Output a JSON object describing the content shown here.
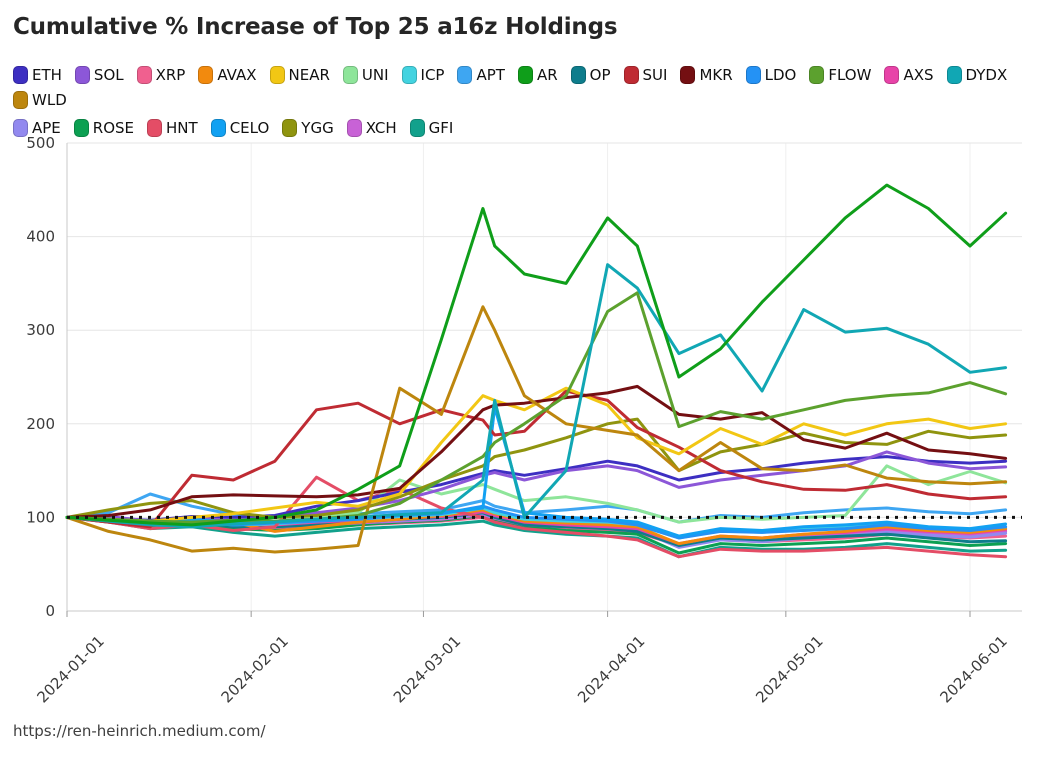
{
  "title": "Cumulative % Increase of Top 25 a16z Holdings",
  "footer": "https://ren-heinrich.medium.com/",
  "chart_data": {
    "type": "line",
    "title": "Cumulative % Increase of Top 25 a16z Holdings",
    "xlabel": "",
    "ylabel": "",
    "ylim": [
      0,
      500
    ],
    "yticks": [
      0,
      100,
      200,
      300,
      400,
      500
    ],
    "grid": true,
    "legend_position": "top",
    "baseline": {
      "value": 100,
      "style": "dotted",
      "color": "#111111"
    },
    "x_tick_labels": [
      "2024-01-01",
      "2024-02-01",
      "2024-03-01",
      "2024-04-01",
      "2024-05-01",
      "2024-06-01"
    ],
    "x_tick_days": [
      0,
      31,
      60,
      91,
      121,
      152
    ],
    "sample_days": [
      0,
      7,
      14,
      21,
      28,
      35,
      42,
      49,
      56,
      63,
      70,
      72,
      77,
      84,
      91,
      96,
      103,
      110,
      117,
      124,
      131,
      138,
      145,
      152,
      158
    ],
    "series": [
      {
        "name": "ETH",
        "color": "#3d2fc2",
        "values": [
          100,
          99,
          97,
          101,
          100,
          102,
          112,
          118,
          127,
          135,
          147,
          150,
          145,
          152,
          160,
          155,
          140,
          148,
          152,
          158,
          162,
          165,
          160,
          158,
          160
        ]
      },
      {
        "name": "SOL",
        "color": "#8c57d8",
        "values": [
          100,
          101,
          96,
          99,
          97,
          100,
          105,
          110,
          118,
          130,
          145,
          148,
          140,
          150,
          155,
          150,
          132,
          140,
          145,
          150,
          155,
          170,
          158,
          152,
          154
        ]
      },
      {
        "name": "XRP",
        "color": "#f0608f",
        "values": [
          100,
          96,
          92,
          94,
          90,
          88,
          90,
          92,
          94,
          96,
          100,
          96,
          90,
          88,
          86,
          84,
          70,
          76,
          74,
          76,
          78,
          82,
          80,
          78,
          80
        ]
      },
      {
        "name": "AVAX",
        "color": "#f28a0e",
        "values": [
          100,
          97,
          93,
          97,
          95,
          85,
          90,
          95,
          98,
          102,
          108,
          104,
          96,
          94,
          92,
          90,
          72,
          80,
          78,
          82,
          85,
          90,
          86,
          84,
          88
        ]
      },
      {
        "name": "NEAR",
        "color": "#f2c714",
        "values": [
          100,
          98,
          96,
          100,
          104,
          110,
          116,
          112,
          125,
          180,
          230,
          225,
          215,
          238,
          220,
          185,
          168,
          195,
          178,
          200,
          188,
          200,
          205,
          195,
          200
        ]
      },
      {
        "name": "UNI",
        "color": "#8ee59a",
        "values": [
          100,
          98,
          95,
          96,
          94,
          96,
          100,
          105,
          140,
          125,
          135,
          130,
          118,
          122,
          115,
          108,
          95,
          100,
          98,
          100,
          102,
          155,
          135,
          149,
          137
        ]
      },
      {
        "name": "ICP",
        "color": "#43d3e0",
        "values": [
          100,
          96,
          93,
          95,
          92,
          93,
          96,
          98,
          101,
          103,
          110,
          105,
          98,
          96,
          95,
          92,
          78,
          86,
          84,
          88,
          90,
          93,
          89,
          87,
          90
        ]
      },
      {
        "name": "APT",
        "color": "#3ea6f2",
        "values": [
          100,
          105,
          125,
          112,
          103,
          100,
          102,
          104,
          106,
          108,
          118,
          112,
          105,
          108,
          112,
          108,
          95,
          102,
          100,
          105,
          108,
          110,
          106,
          104,
          108
        ]
      },
      {
        "name": "AR",
        "color": "#0f9e1a",
        "values": [
          100,
          97,
          94,
          92,
          96,
          100,
          108,
          130,
          155,
          290,
          430,
          390,
          360,
          350,
          420,
          390,
          250,
          280,
          330,
          375,
          420,
          455,
          430,
          390,
          425
        ]
      },
      {
        "name": "OP",
        "color": "#0e7d8c",
        "values": [
          100,
          97,
          93,
          95,
          90,
          90,
          92,
          95,
          98,
          100,
          105,
          100,
          92,
          90,
          88,
          85,
          70,
          78,
          76,
          78,
          80,
          82,
          78,
          74,
          75
        ]
      },
      {
        "name": "SUI",
        "color": "#bf2b33",
        "values": [
          100,
          95,
          90,
          145,
          140,
          160,
          215,
          222,
          200,
          215,
          204,
          188,
          192,
          235,
          225,
          196,
          175,
          150,
          138,
          130,
          129,
          135,
          125,
          120,
          122
        ]
      },
      {
        "name": "MKR",
        "color": "#740f12",
        "values": [
          100,
          102,
          108,
          122,
          124,
          123,
          122,
          124,
          131,
          170,
          215,
          220,
          222,
          228,
          233,
          240,
          210,
          205,
          212,
          183,
          174,
          190,
          172,
          168,
          163
        ]
      },
      {
        "name": "LDO",
        "color": "#2492f5",
        "values": [
          100,
          97,
          94,
          96,
          92,
          94,
          96,
          98,
          102,
          104,
          112,
          108,
          100,
          98,
          96,
          92,
          78,
          85,
          84,
          86,
          88,
          92,
          88,
          86,
          90
        ]
      },
      {
        "name": "FLOW",
        "color": "#5ca12e",
        "values": [
          100,
          98,
          96,
          95,
          97,
          96,
          98,
          102,
          115,
          140,
          165,
          180,
          200,
          230,
          320,
          340,
          197,
          213,
          205,
          215,
          225,
          230,
          233,
          244,
          232
        ]
      },
      {
        "name": "AXS",
        "color": "#e843a8",
        "values": [
          100,
          97,
          94,
          96,
          93,
          92,
          95,
          97,
          99,
          101,
          106,
          102,
          95,
          92,
          90,
          88,
          72,
          80,
          78,
          82,
          84,
          88,
          85,
          83,
          87
        ]
      },
      {
        "name": "DYDX",
        "color": "#11a7b4",
        "values": [
          100,
          96,
          92,
          90,
          93,
          95,
          98,
          100,
          103,
          105,
          140,
          225,
          100,
          150,
          370,
          345,
          275,
          295,
          235,
          322,
          298,
          302,
          285,
          255,
          260
        ]
      },
      {
        "name": "WLD",
        "color": "#bd860e",
        "values": [
          100,
          85,
          76,
          64,
          67,
          63,
          66,
          70,
          238,
          210,
          325,
          300,
          230,
          200,
          193,
          188,
          150,
          180,
          152,
          150,
          156,
          142,
          138,
          136,
          138
        ]
      },
      {
        "name": "APE",
        "color": "#9289ef",
        "values": [
          100,
          97,
          93,
          95,
          92,
          91,
          93,
          95,
          97,
          99,
          104,
          100,
          93,
          91,
          89,
          87,
          68,
          76,
          74,
          78,
          80,
          84,
          81,
          79,
          83
        ]
      },
      {
        "name": "ROSE",
        "color": "#0ca052",
        "values": [
          100,
          96,
          90,
          92,
          88,
          86,
          88,
          92,
          95,
          97,
          102,
          98,
          90,
          86,
          84,
          82,
          62,
          72,
          70,
          72,
          74,
          78,
          74,
          70,
          72
        ]
      },
      {
        "name": "HNT",
        "color": "#e44d66",
        "values": [
          100,
          95,
          88,
          92,
          86,
          90,
          143,
          118,
          130,
          110,
          100,
          95,
          88,
          84,
          80,
          76,
          58,
          66,
          64,
          64,
          66,
          68,
          64,
          60,
          58
        ]
      },
      {
        "name": "CELO",
        "color": "#12a1f2",
        "values": [
          100,
          98,
          96,
          98,
          95,
          96,
          98,
          100,
          103,
          105,
          110,
          218,
          105,
          100,
          98,
          95,
          80,
          88,
          86,
          90,
          92,
          95,
          90,
          88,
          93
        ]
      },
      {
        "name": "YGG",
        "color": "#8f940f",
        "values": [
          100,
          108,
          115,
          118,
          105,
          100,
          102,
          108,
          122,
          140,
          155,
          165,
          172,
          185,
          200,
          205,
          150,
          170,
          178,
          190,
          180,
          178,
          192,
          185,
          188
        ]
      },
      {
        "name": "XCH",
        "color": "#c862d6",
        "values": [
          100,
          96,
          92,
          94,
          91,
          90,
          92,
          94,
          96,
          98,
          103,
          99,
          92,
          90,
          88,
          86,
          70,
          78,
          76,
          80,
          82,
          86,
          83,
          81,
          85
        ]
      },
      {
        "name": "GFI",
        "color": "#12a18c",
        "values": [
          100,
          95,
          88,
          90,
          84,
          80,
          84,
          88,
          90,
          92,
          96,
          92,
          86,
          82,
          80,
          78,
          58,
          68,
          66,
          66,
          68,
          72,
          68,
          64,
          65
        ]
      }
    ]
  }
}
